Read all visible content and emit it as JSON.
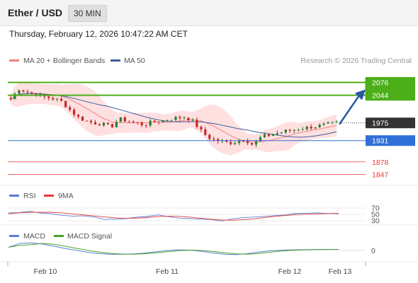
{
  "header": {
    "title": "Ether / USD",
    "timeframe": "30 MIN"
  },
  "timestamp": "Thursday, February 12, 2026 10:47:22 AM CET",
  "legend": {
    "ma20": "MA 20 + Bollinger Bands",
    "ma50": "MA 50",
    "credit": "Research © 2026 Trading Central"
  },
  "colors": {
    "candle_up": "#2e7d32",
    "candle_down": "#c62828",
    "ma20": "#f08080",
    "ma50": "#3a5fa0",
    "bollinger": "#ffd6d6",
    "resistance": "#4caf1a",
    "support_blue": "#2f6fd8",
    "support_red": "#e53935",
    "rsi": "#5b7fd6",
    "rsi_ma": "#e53935",
    "macd": "#5b7fd6",
    "macd_signal": "#4aa02c"
  },
  "chart_data": [
    {
      "type": "candlestick",
      "title": "Ether / USD",
      "x_tick_labels": [
        "Feb 10",
        "Feb 11",
        "Feb 12",
        "Feb 13"
      ],
      "ylim": [
        1830,
        2105
      ],
      "series": [
        {
          "name": "MA 20 + Bollinger Bands",
          "type": "line"
        },
        {
          "name": "MA 50",
          "type": "line"
        }
      ],
      "levels": [
        {
          "label": "2076",
          "value": 2076,
          "kind": "resistance"
        },
        {
          "label": "2044",
          "value": 2044,
          "kind": "resistance"
        },
        {
          "label": "1975",
          "value": 1975,
          "kind": "last_price"
        },
        {
          "label": "1931",
          "value": 1931,
          "kind": "support"
        },
        {
          "label": "1878",
          "value": 1878,
          "kind": "support"
        },
        {
          "label": "1847",
          "value": 1847,
          "kind": "support"
        }
      ],
      "close_path": [
        2034,
        2060,
        2052,
        2047,
        2040,
        2036,
        2030,
        2010,
        1990,
        1980,
        1975,
        1972,
        1965,
        1985,
        1980,
        1975,
        1970,
        1978,
        1980,
        1985,
        1988,
        1990,
        1975,
        1950,
        1935,
        1930,
        1925,
        1928,
        1935,
        1920,
        1940,
        1945,
        1950,
        1955,
        1958,
        1962,
        1965,
        1968,
        1972,
        1975
      ],
      "scenario_arrow": {
        "from": 1975,
        "to": 2076
      }
    },
    {
      "type": "line",
      "title": "RSI",
      "series": [
        {
          "name": "RSI"
        },
        {
          "name": "9MA"
        }
      ],
      "y_tick_labels": [
        "70",
        "50",
        "30"
      ],
      "values": [
        52,
        58,
        60,
        56,
        53,
        50,
        47,
        44,
        40,
        37,
        35,
        38,
        42,
        45,
        47,
        43,
        40,
        36,
        33,
        31,
        30,
        33,
        38,
        42,
        46,
        48,
        50,
        52,
        53,
        52,
        54,
        53
      ]
    },
    {
      "type": "line",
      "title": "MACD",
      "series": [
        {
          "name": "MACD"
        },
        {
          "name": "MACD Signal"
        }
      ],
      "y_tick_labels": [
        "0"
      ],
      "values": [
        10,
        22,
        24,
        20,
        13,
        6,
        0,
        -6,
        -10,
        -12,
        -12,
        -11,
        -8,
        -4,
        0,
        2,
        1,
        -3,
        -8,
        -12,
        -13,
        -10,
        -5,
        -1,
        1,
        2,
        2.5,
        3,
        3,
        3
      ]
    }
  ]
}
